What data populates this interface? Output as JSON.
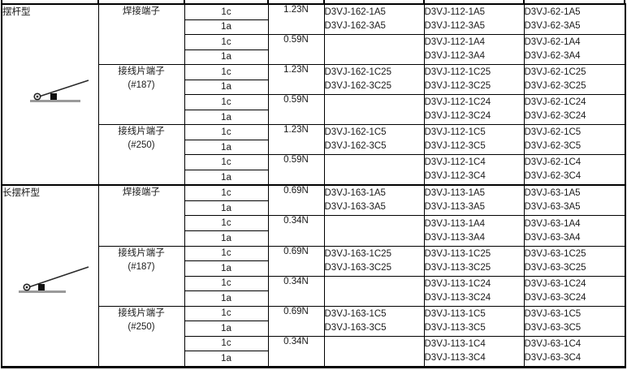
{
  "page": {
    "background_color": "#ffffff",
    "border_color": "#000000",
    "baseline_gray": "#9a9a9a",
    "text_color": "#1a1a1a"
  },
  "table": {
    "sections": [
      {
        "type_label": "摆杆型",
        "icon": "short-lever-icon",
        "groups": [
          {
            "terminal": [
              "焊接端子"
            ],
            "force_blocks": [
              {
                "force": "1.23N",
                "contacts": [
                  "1c",
                  "1a"
                ],
                "models": [
                  [
                    "D3VJ-162-1A5",
                    "D3VJ-162-3A5"
                  ],
                  [
                    "D3VJ-112-1A5",
                    "D3VJ-112-3A5"
                  ],
                  [
                    "D3VJ-62-1A5",
                    "D3VJ-62-3A5"
                  ]
                ]
              },
              {
                "force": "0.59N",
                "contacts": [
                  "1c",
                  "1a"
                ],
                "models": [
                  [],
                  [
                    "D3VJ-112-1A4",
                    "D3VJ-112-3A4"
                  ],
                  [
                    "D3VJ-62-1A4",
                    "D3VJ-62-3A4"
                  ]
                ]
              }
            ]
          },
          {
            "terminal": [
              "接线片端子",
              "(#187)"
            ],
            "force_blocks": [
              {
                "force": "1.23N",
                "contacts": [
                  "1c",
                  "1a"
                ],
                "models": [
                  [
                    "D3VJ-162-1C25",
                    "D3VJ-162-3C25"
                  ],
                  [
                    "D3VJ-112-1C25",
                    "D3VJ-112-3C25"
                  ],
                  [
                    "D3VJ-62-1C25",
                    "D3VJ-62-3C25"
                  ]
                ]
              },
              {
                "force": "0.59N",
                "contacts": [
                  "1c",
                  "1a"
                ],
                "models": [
                  [],
                  [
                    "D3VJ-112-1C24",
                    "D3VJ-112-3C24"
                  ],
                  [
                    "D3VJ-62-1C24",
                    "D3VJ-62-3C24"
                  ]
                ]
              }
            ]
          },
          {
            "terminal": [
              "接线片端子",
              "(#250)"
            ],
            "force_blocks": [
              {
                "force": "1.23N",
                "contacts": [
                  "1c",
                  "1a"
                ],
                "models": [
                  [
                    "D3VJ-162-1C5",
                    "D3VJ-162-3C5"
                  ],
                  [
                    "D3VJ-112-1C5",
                    "D3VJ-112-3C5"
                  ],
                  [
                    "D3VJ-62-1C5",
                    "D3VJ-62-3C5"
                  ]
                ]
              },
              {
                "force": "0.59N",
                "contacts": [
                  "1c",
                  "1a"
                ],
                "models": [
                  [],
                  [
                    "D3VJ-112-1C4",
                    "D3VJ-112-3C4"
                  ],
                  [
                    "D3VJ-62-1C4",
                    "D3VJ-62-3C4"
                  ]
                ]
              }
            ]
          }
        ]
      },
      {
        "type_label": "长摆杆型",
        "icon": "long-lever-icon",
        "groups": [
          {
            "terminal": [
              "焊接端子"
            ],
            "force_blocks": [
              {
                "force": "0.69N",
                "contacts": [
                  "1c",
                  "1a"
                ],
                "models": [
                  [
                    "D3VJ-163-1A5",
                    "D3VJ-163-3A5"
                  ],
                  [
                    "D3VJ-113-1A5",
                    "D3VJ-113-3A5"
                  ],
                  [
                    "D3VJ-63-1A5",
                    "D3VJ-63-3A5"
                  ]
                ]
              },
              {
                "force": "0.34N",
                "contacts": [
                  "1c",
                  "1a"
                ],
                "models": [
                  [],
                  [
                    "D3VJ-113-1A4",
                    "D3VJ-113-3A4"
                  ],
                  [
                    "D3VJ-63-1A4",
                    "D3VJ-63-3A4"
                  ]
                ]
              }
            ]
          },
          {
            "terminal": [
              "接线片端子",
              "(#187)"
            ],
            "force_blocks": [
              {
                "force": "0.69N",
                "contacts": [
                  "1c",
                  "1a"
                ],
                "models": [
                  [
                    "D3VJ-163-1C25",
                    "D3VJ-163-3C25"
                  ],
                  [
                    "D3VJ-113-1C25",
                    "D3VJ-113-3C25"
                  ],
                  [
                    "D3VJ-63-1C25",
                    "D3VJ-63-3C25"
                  ]
                ]
              },
              {
                "force": "0.34N",
                "contacts": [
                  "1c",
                  "1a"
                ],
                "models": [
                  [],
                  [
                    "D3VJ-113-1C24",
                    "D3VJ-113-3C24"
                  ],
                  [
                    "D3VJ-63-1C24",
                    "D3VJ-63-3C24"
                  ]
                ]
              }
            ]
          },
          {
            "terminal": [
              "接线片端子",
              "(#250)"
            ],
            "force_blocks": [
              {
                "force": "0.69N",
                "contacts": [
                  "1c",
                  "1a"
                ],
                "models": [
                  [
                    "D3VJ-163-1C5",
                    "D3VJ-163-3C5"
                  ],
                  [
                    "D3VJ-113-1C5",
                    "D3VJ-113-3C5"
                  ],
                  [
                    "D3VJ-63-1C5",
                    "D3VJ-63-3C5"
                  ]
                ]
              },
              {
                "force": "0.34N",
                "contacts": [
                  "1c",
                  "1a"
                ],
                "models": [
                  [],
                  [
                    "D3VJ-113-1C4",
                    "D3VJ-113-3C4"
                  ],
                  [
                    "D3VJ-63-1C4",
                    "D3VJ-63-3C4"
                  ]
                ]
              }
            ]
          }
        ]
      }
    ]
  }
}
